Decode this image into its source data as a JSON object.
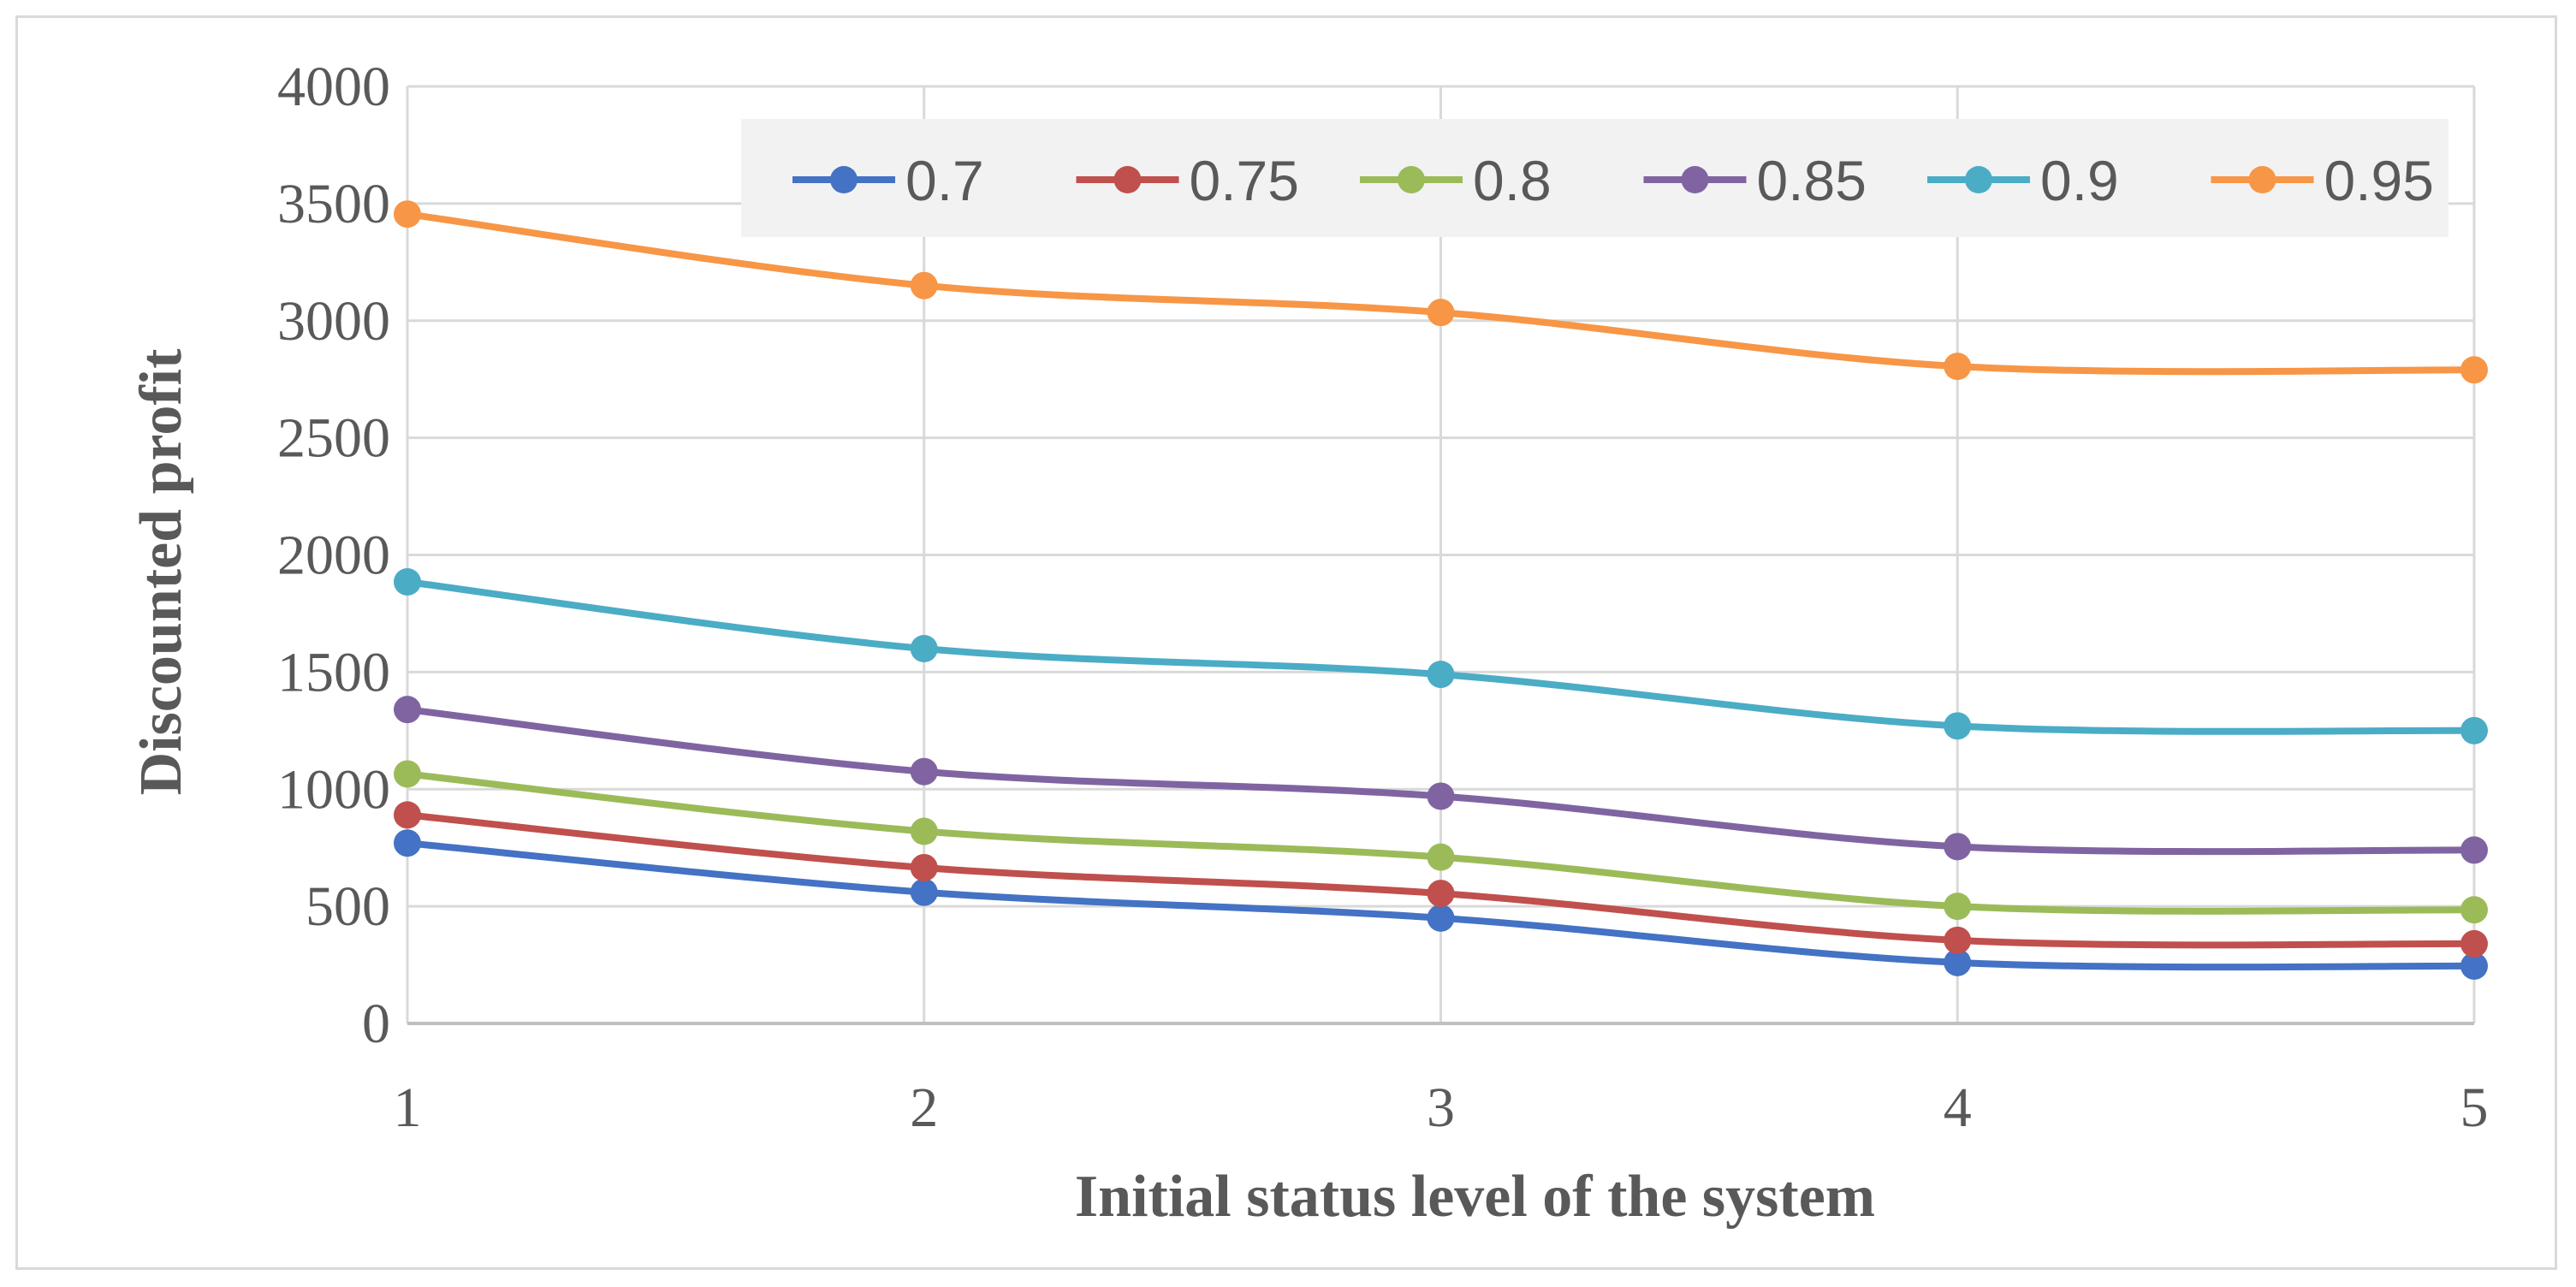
{
  "chart_data": {
    "type": "line",
    "title": "",
    "xlabel": "Initial status level of the system",
    "ylabel": "Discounted profit",
    "categories": [
      "1",
      "2",
      "3",
      "4",
      "5"
    ],
    "x": [
      1,
      2,
      3,
      4,
      5
    ],
    "ylim": [
      0,
      4000
    ],
    "yticks": [
      "0",
      "500",
      "1000",
      "1500",
      "2000",
      "2500",
      "3000",
      "3500",
      "4000"
    ],
    "ytick_values": [
      0,
      500,
      1000,
      1500,
      2000,
      2500,
      3000,
      3500,
      4000
    ],
    "grid": true,
    "legend_position": "top-right",
    "series": [
      {
        "name": "0.7",
        "color": "#4472c4",
        "values": [
          770,
          560,
          450,
          260,
          245
        ]
      },
      {
        "name": "0.75",
        "color": "#c0504d",
        "values": [
          890,
          665,
          555,
          355,
          340
        ]
      },
      {
        "name": "0.8",
        "color": "#9bbb59",
        "values": [
          1065,
          820,
          710,
          500,
          485
        ]
      },
      {
        "name": "0.85",
        "color": "#8064a2",
        "values": [
          1340,
          1075,
          970,
          755,
          740
        ]
      },
      {
        "name": "0.9",
        "color": "#4bacc6",
        "values": [
          1885,
          1600,
          1490,
          1270,
          1250
        ]
      },
      {
        "name": "0.95",
        "color": "#f79646",
        "values": [
          3455,
          3150,
          3035,
          2805,
          2790
        ]
      }
    ]
  }
}
